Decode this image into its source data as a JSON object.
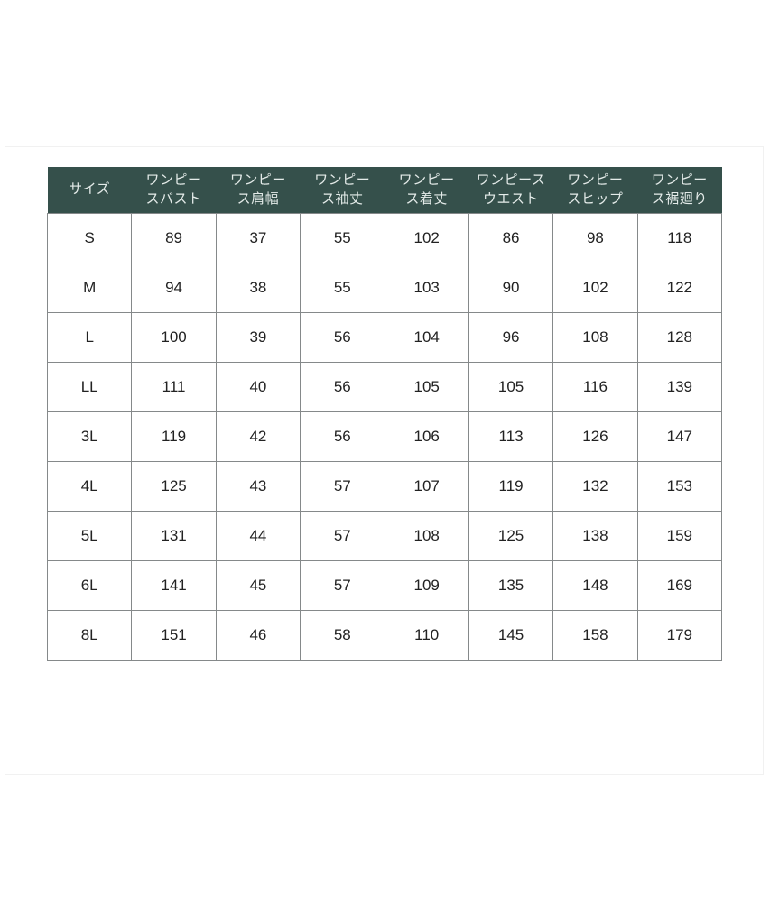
{
  "page": {
    "background": "#ffffff",
    "panel_background": "#ffffff",
    "panel_border_color": "#f1f1f1"
  },
  "chart_data": {
    "type": "table",
    "header_bg": "#35504b",
    "header_text_color": "#e4ebe9",
    "body_text_color": "#222222",
    "grid_color": "#85898a",
    "columns": [
      "サイズ",
      "ワンピー\nスバスト",
      "ワンピー\nス肩幅",
      "ワンピー\nス袖丈",
      "ワンピー\nス着丈",
      "ワンピース\nウエスト",
      "ワンピー\nスヒップ",
      "ワンピー\nス裾廻り"
    ],
    "rows": [
      {
        "size": "S",
        "values": [
          89,
          37,
          55,
          102,
          86,
          98,
          118
        ]
      },
      {
        "size": "M",
        "values": [
          94,
          38,
          55,
          103,
          90,
          102,
          122
        ]
      },
      {
        "size": "L",
        "values": [
          100,
          39,
          56,
          104,
          96,
          108,
          128
        ]
      },
      {
        "size": "LL",
        "values": [
          111,
          40,
          56,
          105,
          105,
          116,
          139
        ]
      },
      {
        "size": "3L",
        "values": [
          119,
          42,
          56,
          106,
          113,
          126,
          147
        ]
      },
      {
        "size": "4L",
        "values": [
          125,
          43,
          57,
          107,
          119,
          132,
          153
        ]
      },
      {
        "size": "5L",
        "values": [
          131,
          44,
          57,
          108,
          125,
          138,
          159
        ]
      },
      {
        "size": "6L",
        "values": [
          141,
          45,
          57,
          109,
          135,
          148,
          169
        ]
      },
      {
        "size": "8L",
        "values": [
          151,
          46,
          58,
          110,
          145,
          158,
          179
        ]
      }
    ]
  }
}
